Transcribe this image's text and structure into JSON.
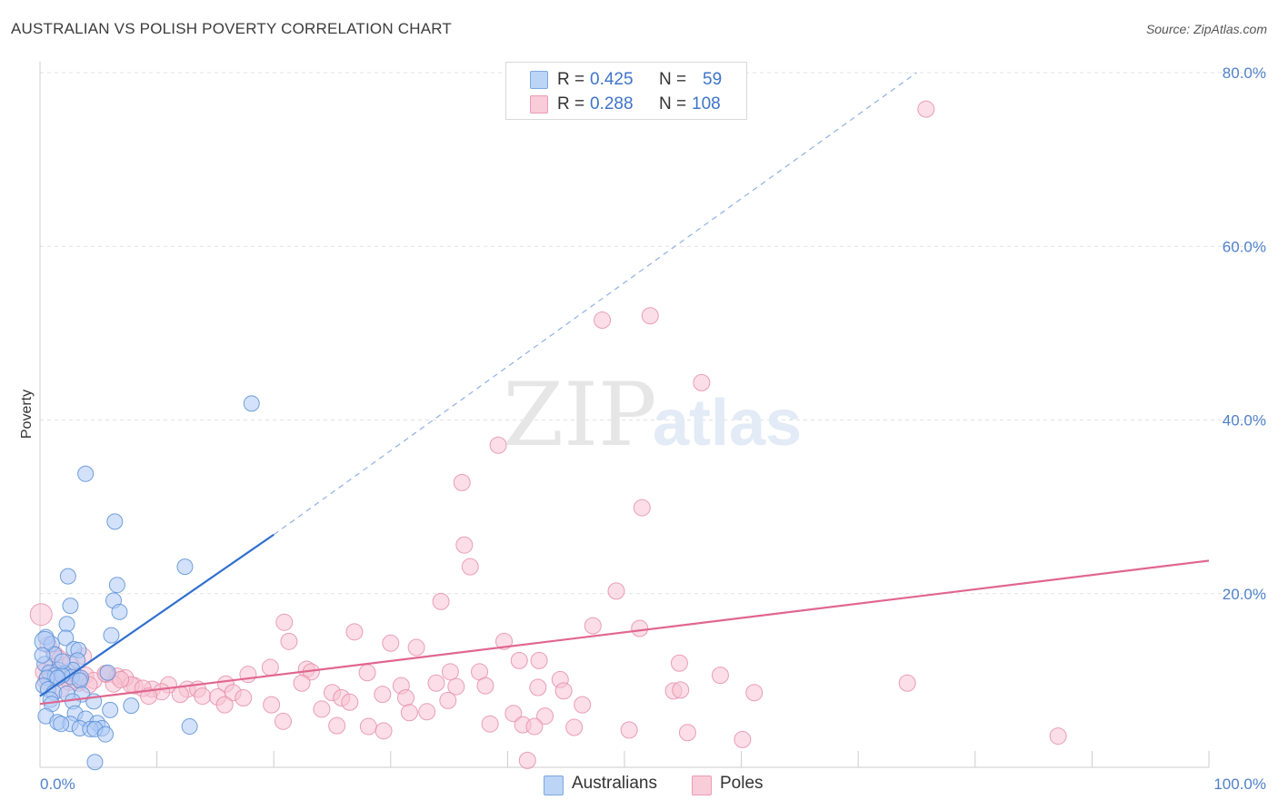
{
  "header": {
    "title": "AUSTRALIAN VS POLISH POVERTY CORRELATION CHART",
    "source": "Source: ZipAtlas.com"
  },
  "legend": {
    "rows": [
      {
        "r_label": "R =",
        "r_value": "0.425",
        "n_label": "N =",
        "n_value": "59"
      },
      {
        "r_label": "R =",
        "r_value": "0.288",
        "n_label": "N =",
        "n_value": "108"
      }
    ]
  },
  "bottom_legend": {
    "australians": "Australians",
    "poles": "Poles"
  },
  "watermark": {
    "zip": "ZIP",
    "atlas": "atlas"
  },
  "colors": {
    "australians_fill": "#aecbf5",
    "australians_stroke": "#5a8fd6",
    "australians_line": "#2f6fd0",
    "poles_fill": "#f7c3d3",
    "poles_stroke": "#e58aa8",
    "poles_line": "#e0668f",
    "tick_text": "#4f82c9"
  },
  "chart_data": {
    "type": "scatter",
    "title": "AUSTRALIAN VS POLISH POVERTY CORRELATION CHART",
    "xlabel": "",
    "ylabel": "Poverty",
    "xlim": [
      0,
      100
    ],
    "ylim": [
      0,
      80
    ],
    "x_tick_labels": [
      "0.0%",
      "100.0%"
    ],
    "y_ticks": [
      20,
      40,
      60,
      80
    ],
    "y_tick_labels": [
      "20.0%",
      "40.0%",
      "60.0%",
      "80.0%"
    ],
    "grid": true,
    "legend_position": "top-center",
    "series": [
      {
        "name": "Australians",
        "R": 0.425,
        "N": 59,
        "trend": {
          "x0": 0,
          "y0": 8.2,
          "x1": 20,
          "y1": 26.8,
          "dash_to_x": 75,
          "dash_to_y": 80
        },
        "points": [
          [
            18.1,
            41.9
          ],
          [
            3.9,
            33.8
          ],
          [
            6.4,
            28.3
          ],
          [
            12.4,
            23.1
          ],
          [
            2.4,
            22.0
          ],
          [
            6.6,
            21.0
          ],
          [
            6.3,
            19.2
          ],
          [
            2.6,
            18.6
          ],
          [
            6.8,
            17.9
          ],
          [
            2.3,
            16.5
          ],
          [
            6.1,
            15.2
          ],
          [
            0.5,
            15.0
          ],
          [
            2.2,
            14.9
          ],
          [
            1.0,
            14.2
          ],
          [
            2.9,
            13.6
          ],
          [
            3.3,
            13.5
          ],
          [
            1.2,
            13.0
          ],
          [
            3.2,
            12.3
          ],
          [
            0.4,
            11.9
          ],
          [
            1.6,
            11.2
          ],
          [
            2.8,
            11.2
          ],
          [
            0.8,
            10.9
          ],
          [
            2.1,
            10.8
          ],
          [
            5.8,
            10.9
          ],
          [
            1.3,
            10.6
          ],
          [
            2.7,
            10.4
          ],
          [
            3.5,
            10.3
          ],
          [
            0.6,
            10.3
          ],
          [
            1.9,
            10.6
          ],
          [
            3.4,
            10.0
          ],
          [
            1.5,
            10.3
          ],
          [
            0.3,
            9.4
          ],
          [
            0.7,
            9.0
          ],
          [
            1.2,
            8.6
          ],
          [
            2.3,
            8.5
          ],
          [
            3.6,
            8.4
          ],
          [
            0.9,
            7.8
          ],
          [
            2.8,
            7.6
          ],
          [
            4.6,
            7.6
          ],
          [
            1.0,
            7.3
          ],
          [
            7.8,
            7.1
          ],
          [
            6.0,
            6.6
          ],
          [
            3.0,
            6.2
          ],
          [
            0.5,
            5.9
          ],
          [
            3.9,
            5.6
          ],
          [
            1.5,
            5.2
          ],
          [
            2.6,
            5.0
          ],
          [
            1.8,
            5.0
          ],
          [
            4.9,
            5.1
          ],
          [
            3.4,
            4.5
          ],
          [
            5.3,
            4.5
          ],
          [
            4.3,
            4.4
          ],
          [
            4.7,
            4.4
          ],
          [
            12.8,
            4.7
          ],
          [
            5.6,
            3.8
          ],
          [
            4.7,
            0.6
          ],
          [
            0.4,
            14.5
          ],
          [
            1.9,
            12.2
          ],
          [
            0.2,
            12.9
          ]
        ]
      },
      {
        "name": "Poles",
        "R": 0.288,
        "N": 108,
        "trend": {
          "x0": 0,
          "y0": 7.3,
          "x1": 100,
          "y1": 23.8
        },
        "points": [
          [
            75.8,
            75.8
          ],
          [
            52.2,
            52.0
          ],
          [
            48.1,
            51.5
          ],
          [
            56.6,
            44.3
          ],
          [
            39.2,
            37.1
          ],
          [
            36.1,
            32.8
          ],
          [
            51.5,
            29.9
          ],
          [
            36.3,
            25.6
          ],
          [
            36.8,
            23.1
          ],
          [
            49.3,
            20.3
          ],
          [
            34.3,
            19.1
          ],
          [
            47.3,
            16.3
          ],
          [
            20.9,
            16.7
          ],
          [
            51.3,
            16.0
          ],
          [
            26.9,
            15.6
          ],
          [
            21.3,
            14.5
          ],
          [
            30.0,
            14.3
          ],
          [
            32.2,
            13.8
          ],
          [
            39.7,
            14.5
          ],
          [
            41.0,
            12.3
          ],
          [
            42.7,
            12.3
          ],
          [
            54.7,
            12.0
          ],
          [
            19.7,
            11.5
          ],
          [
            22.8,
            11.3
          ],
          [
            23.2,
            11.0
          ],
          [
            28.0,
            10.9
          ],
          [
            35.1,
            11.0
          ],
          [
            37.6,
            11.0
          ],
          [
            58.2,
            10.6
          ],
          [
            17.8,
            10.7
          ],
          [
            33.9,
            9.7
          ],
          [
            22.4,
            9.7
          ],
          [
            30.9,
            9.4
          ],
          [
            44.5,
            10.1
          ],
          [
            15.9,
            9.6
          ],
          [
            35.6,
            9.3
          ],
          [
            38.1,
            9.4
          ],
          [
            42.6,
            9.2
          ],
          [
            54.2,
            8.8
          ],
          [
            54.8,
            8.9
          ],
          [
            25.0,
            8.6
          ],
          [
            29.3,
            8.4
          ],
          [
            44.8,
            8.8
          ],
          [
            61.1,
            8.6
          ],
          [
            74.2,
            9.7
          ],
          [
            3.3,
            9.7
          ],
          [
            11.0,
            9.5
          ],
          [
            8.1,
            9.4
          ],
          [
            12.6,
            9.0
          ],
          [
            13.5,
            9.0
          ],
          [
            9.6,
            9.0
          ],
          [
            16.5,
            8.6
          ],
          [
            12.0,
            8.4
          ],
          [
            13.9,
            8.2
          ],
          [
            15.2,
            8.1
          ],
          [
            17.4,
            8.0
          ],
          [
            25.8,
            8.0
          ],
          [
            31.3,
            8.0
          ],
          [
            34.9,
            7.7
          ],
          [
            26.5,
            7.5
          ],
          [
            19.8,
            7.2
          ],
          [
            15.8,
            7.2
          ],
          [
            46.4,
            7.2
          ],
          [
            24.1,
            6.7
          ],
          [
            31.6,
            6.3
          ],
          [
            33.1,
            6.4
          ],
          [
            40.5,
            6.2
          ],
          [
            43.2,
            5.9
          ],
          [
            20.8,
            5.3
          ],
          [
            25.4,
            4.8
          ],
          [
            28.1,
            4.7
          ],
          [
            29.4,
            4.2
          ],
          [
            38.5,
            5.0
          ],
          [
            41.3,
            4.9
          ],
          [
            42.3,
            4.7
          ],
          [
            45.7,
            4.6
          ],
          [
            50.4,
            4.3
          ],
          [
            55.4,
            4.0
          ],
          [
            60.1,
            3.2
          ],
          [
            87.1,
            3.6
          ],
          [
            41.7,
            0.8
          ],
          [
            0.1,
            17.6
          ],
          [
            0.7,
            14.1
          ],
          [
            1.3,
            13.0
          ],
          [
            1.7,
            12.5
          ],
          [
            2.6,
            12.0
          ],
          [
            1.0,
            11.6
          ],
          [
            0.3,
            11.0
          ],
          [
            1.4,
            10.9
          ],
          [
            3.9,
            10.6
          ],
          [
            5.7,
            10.7
          ],
          [
            6.6,
            10.5
          ],
          [
            7.3,
            10.3
          ],
          [
            2.2,
            10.3
          ],
          [
            3.3,
            10.2
          ],
          [
            4.6,
            10.0
          ],
          [
            0.5,
            9.9
          ],
          [
            2.5,
            9.8
          ],
          [
            6.3,
            9.6
          ],
          [
            4.2,
            9.5
          ],
          [
            7.8,
            9.5
          ],
          [
            8.8,
            9.1
          ],
          [
            1.8,
            9.0
          ],
          [
            10.4,
            8.7
          ],
          [
            5.6,
            10.8
          ],
          [
            6.9,
            10.1
          ],
          [
            9.3,
            8.2
          ],
          [
            3.7,
            12.8
          ]
        ]
      }
    ]
  }
}
